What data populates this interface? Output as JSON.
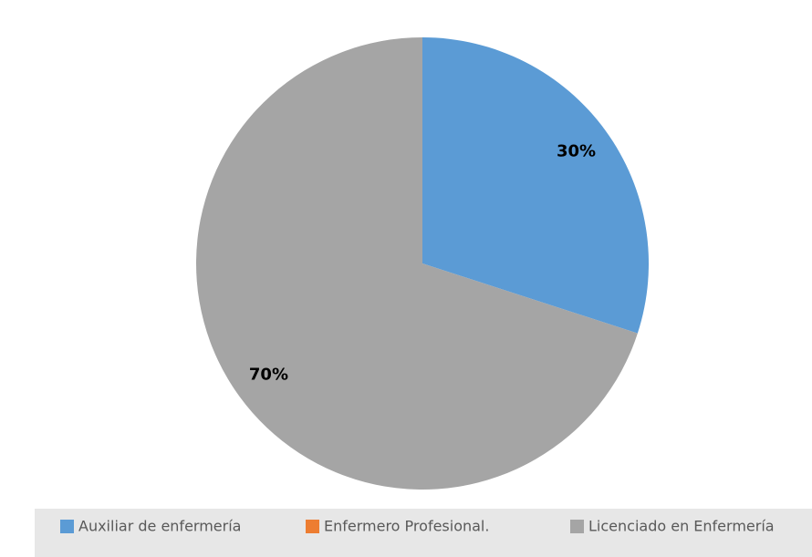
{
  "chart_data": {
    "type": "pie",
    "categories": [
      "Auxiliar de enfermería",
      "Enfermero Profesional.",
      "Licenciado en Enfermería"
    ],
    "values": [
      30,
      0,
      70
    ],
    "value_labels": [
      "30%",
      null,
      "70%"
    ],
    "colors": [
      "#5b9bd5",
      "#ed7d31",
      "#a5a5a5"
    ],
    "legend": "bottom"
  }
}
